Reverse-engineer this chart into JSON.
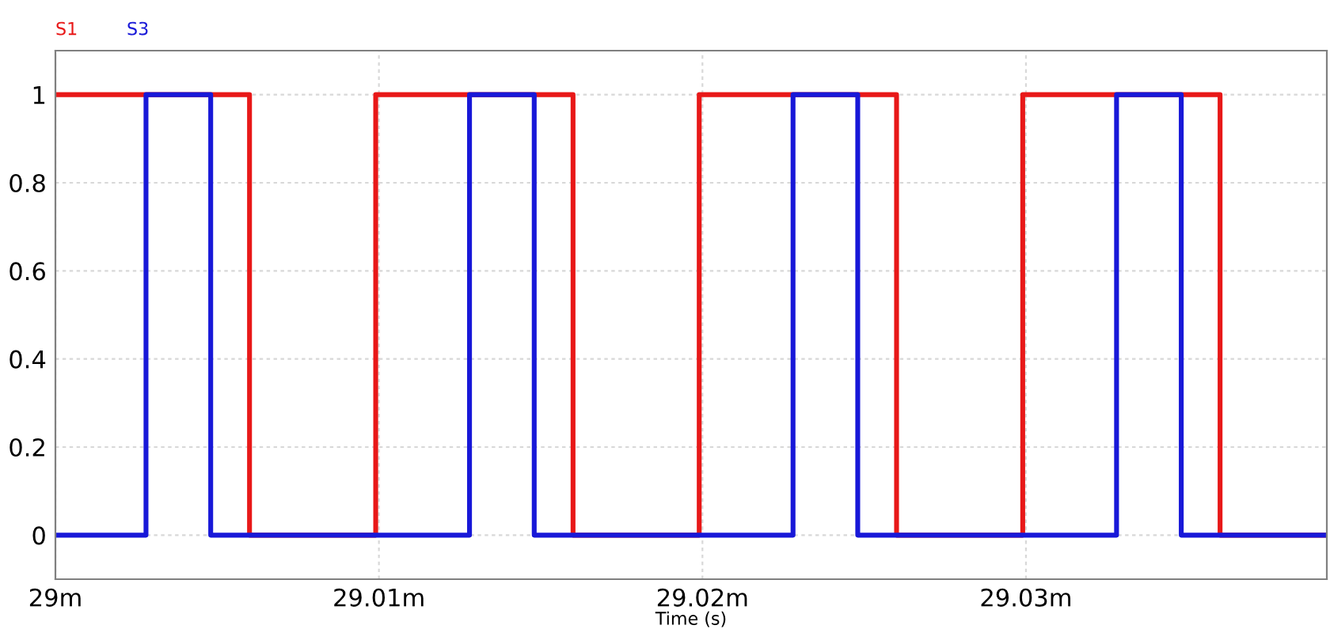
{
  "chart_data": {
    "type": "line",
    "xlabel": "Time (s)",
    "xlim": [
      29,
      29.0393
    ],
    "ylim": [
      -0.1,
      1.1
    ],
    "xticks": [
      {
        "value": 29,
        "label": "29m"
      },
      {
        "value": 29.01,
        "label": "29.01m"
      },
      {
        "value": 29.02,
        "label": "29.02m"
      },
      {
        "value": 29.03,
        "label": "29.03m"
      }
    ],
    "yticks": [
      0,
      0.2,
      0.4,
      0.6,
      0.8,
      1
    ],
    "grid": true,
    "legend": "top left",
    "line_style": "solid",
    "marker": "none",
    "series": [
      {
        "name": "S1",
        "color": "#e81818",
        "x": [
          29,
          29.006,
          29.006,
          29.0099,
          29.0099,
          29.016,
          29.016,
          29.0199,
          29.0199,
          29.026,
          29.026,
          29.0299,
          29.0299,
          29.036,
          29.036,
          29.0393
        ],
        "values": [
          1,
          1,
          0,
          0,
          1,
          1,
          0,
          0,
          1,
          1,
          0,
          0,
          1,
          1,
          0,
          0
        ]
      },
      {
        "name": "S3",
        "color": "#1818d8",
        "x": [
          29,
          29.0028,
          29.0028,
          29.0048,
          29.0048,
          29.0128,
          29.0128,
          29.0148,
          29.0148,
          29.0228,
          29.0228,
          29.0248,
          29.0248,
          29.0328,
          29.0328,
          29.0348,
          29.0348,
          29.0393
        ],
        "values": [
          0,
          0,
          1,
          1,
          0,
          0,
          1,
          1,
          0,
          0,
          1,
          1,
          0,
          0,
          1,
          1,
          0,
          0
        ]
      }
    ]
  }
}
